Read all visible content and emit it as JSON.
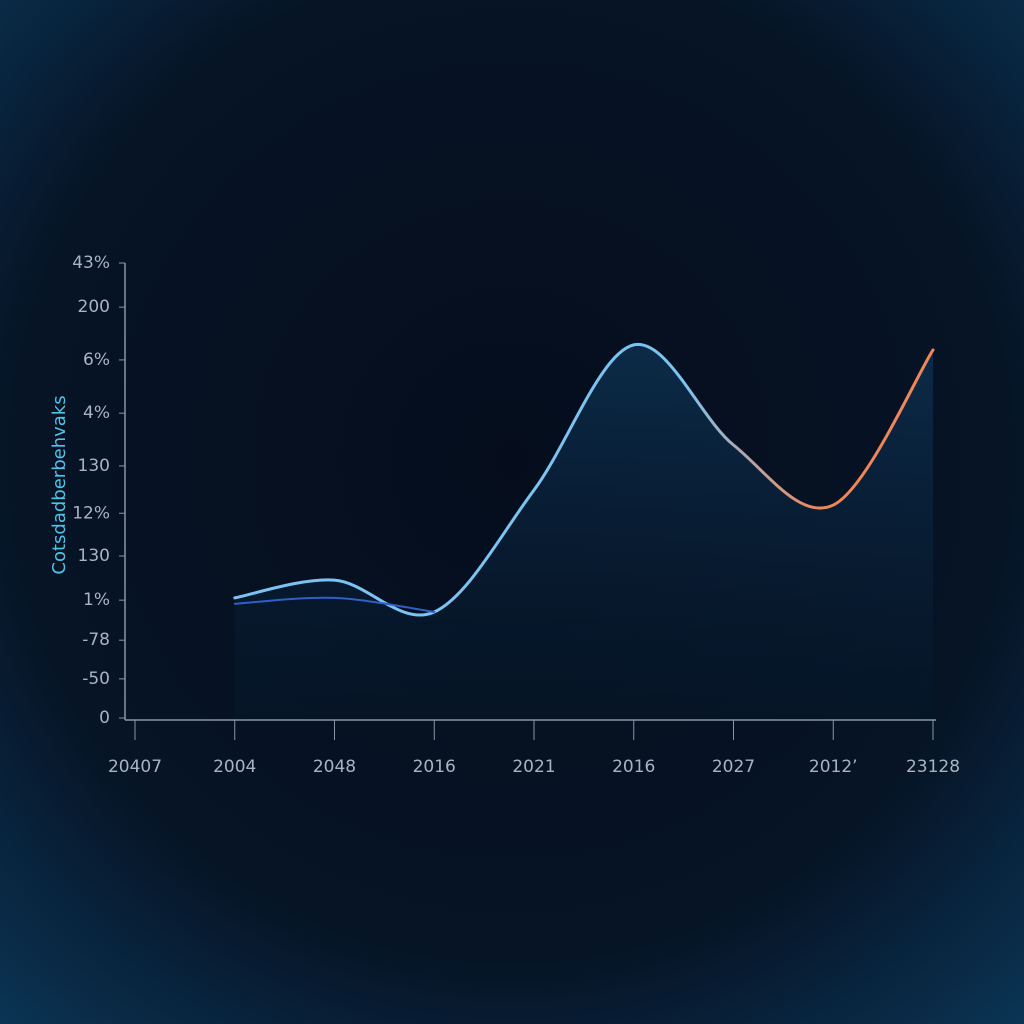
{
  "chart_data": {
    "type": "line",
    "y_label": "Cotsdadberbehvaks",
    "categories": [
      "20407",
      "2004",
      "2048",
      "2016",
      "2021",
      "2016",
      "2027",
      "2012’",
      "23128"
    ],
    "series": [
      {
        "color": "#7cc3f2",
        "gradient_to": "#f0875a",
        "area": true,
        "values": [
          null,
          26.4,
          30.3,
          23.3,
          50.1,
          82.0,
          60.0,
          46.8,
          80.9
        ]
      },
      {
        "color": "#2f5fc4",
        "area": false,
        "values": [
          null,
          25.1,
          26.4,
          23.3,
          null,
          null,
          null,
          null,
          null
        ]
      }
    ],
    "ylim": [
      0,
      100
    ],
    "yticks": [
      0,
      {
        "value": 8.6,
        "label": "-50"
      },
      {
        "value": 17.1,
        "label": "-78"
      },
      {
        "value": 25.9,
        "label": "1%"
      },
      {
        "value": 35.6,
        "label": "130"
      },
      {
        "value": 45.0,
        "label": "12%"
      },
      {
        "value": 55.4,
        "label": "130"
      },
      {
        "value": 67.0,
        "label": "4%"
      },
      {
        "value": 78.7,
        "label": "6%"
      },
      {
        "value": 90.3,
        "label": "200"
      },
      {
        "value": 100,
        "label": "43%"
      }
    ]
  }
}
